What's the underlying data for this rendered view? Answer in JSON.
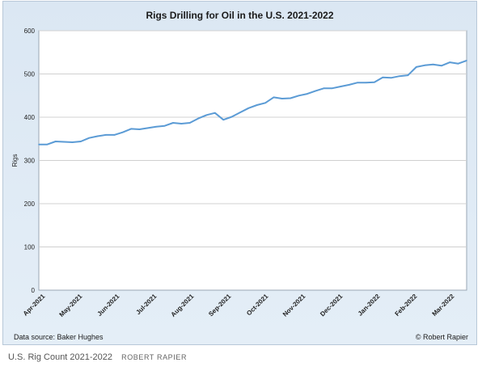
{
  "chart_data": {
    "type": "line",
    "title": "Rigs Drilling for Oil in the U.S. 2021-2022",
    "xlabel": "",
    "ylabel": "Rigs",
    "ylim": [
      0,
      600
    ],
    "yticks": [
      0,
      100,
      200,
      300,
      400,
      500,
      600
    ],
    "grid": true,
    "legend": "none",
    "xtick_labels": [
      "Apr-2021",
      "May-2021",
      "Jun-2021",
      "Jul-2021",
      "Aug-2021",
      "Sep-2021",
      "Oct-2021",
      "Nov-2021",
      "Dec-2021",
      "Jan-2022",
      "Feb-2022",
      "Mar-2022"
    ],
    "series": [
      {
        "color": "#5b9bd5",
        "values": [
          337,
          337,
          344,
          343,
          342,
          344,
          352,
          356,
          359,
          359,
          365,
          373,
          372,
          375,
          378,
          380,
          387,
          385,
          387,
          397,
          405,
          410,
          394,
          401,
          411,
          421,
          428,
          433,
          446,
          443,
          444,
          450,
          454,
          461,
          467,
          467,
          471,
          475,
          480,
          480,
          481,
          492,
          491,
          495,
          497,
          516,
          520,
          522,
          519,
          527,
          524,
          531
        ]
      }
    ]
  },
  "footer": {
    "source": "Data source: Baker Hughes",
    "copyright": "© Robert Rapier"
  },
  "caption": {
    "text": "U.S. Rig Count 2021-2022",
    "credit": "ROBERT RAPIER"
  }
}
